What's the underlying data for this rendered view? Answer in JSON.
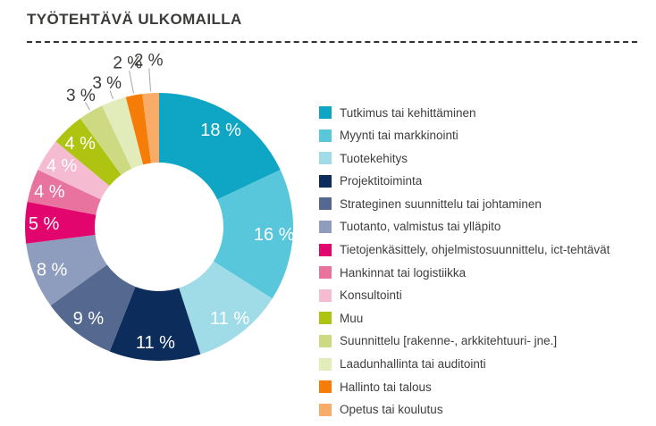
{
  "header": {
    "title": "TYÖTEHTÄVÄ ULKOMAILLA"
  },
  "chart_data": {
    "type": "pie",
    "subtype": "donut",
    "title": "TYÖTEHTÄVÄ ULKOMAILLA",
    "start_angle_deg": 0,
    "direction": "clockwise",
    "inner_radius_ratio": 0.48,
    "legend_position": "right",
    "value_suffix": " %",
    "outside_label_threshold": 3,
    "slices": [
      {
        "label": "Tutkimus tai kehittäminen",
        "value": 18,
        "color": "#0fa5c5"
      },
      {
        "label": "Myynti tai markkinointi",
        "value": 16,
        "color": "#59c7db"
      },
      {
        "label": "Tuotekehitys",
        "value": 11,
        "color": "#a0dbe8"
      },
      {
        "label": "Projektitoiminta",
        "value": 11,
        "color": "#0c2d5b"
      },
      {
        "label": "Strateginen suunnittelu tai johtaminen",
        "value": 9,
        "color": "#55688f"
      },
      {
        "label": "Tuotanto, valmistus tai ylläpito",
        "value": 8,
        "color": "#8e9cbe"
      },
      {
        "label": "Tietojenkäsittely, ohjelmistosuunnittelu, ict-tehtävät",
        "value": 5,
        "color": "#e2056e"
      },
      {
        "label": "Hankinnat tai logistiikka",
        "value": 4,
        "color": "#e7739e"
      },
      {
        "label": "Konsultointi",
        "value": 4,
        "color": "#f5bbd1"
      },
      {
        "label": "Muu",
        "value": 4,
        "color": "#afc410"
      },
      {
        "label": "Suunnittelu [rakenne-, arkkitehtuuri- jne.]",
        "value": 3,
        "color": "#cdda82"
      },
      {
        "label": "Laadunhallinta tai auditointi",
        "value": 3,
        "color": "#e2ecbb"
      },
      {
        "label": "Hallinto tai talous",
        "value": 2,
        "color": "#f57d07"
      },
      {
        "label": "Opetus tai koulutus",
        "value": 2,
        "color": "#f9ac67"
      }
    ]
  },
  "colors": {
    "background": "#ffffff",
    "title_text": "#3b3b39",
    "divider": "#32322f",
    "inside_label": "#ffffff",
    "outside_label": "#3a3a38",
    "leader_line": "#a6a6a6",
    "legend_text": "#3e3e3d"
  }
}
